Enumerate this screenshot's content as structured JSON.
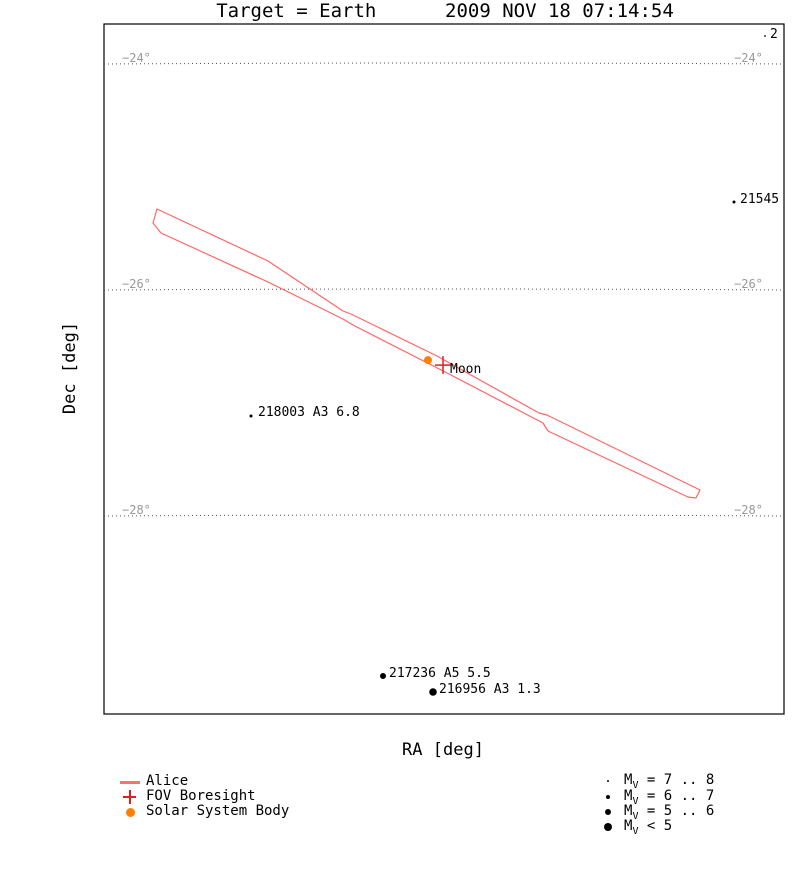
{
  "title": {
    "target": "Target = Earth",
    "datetime": "2009 NOV 18 07:14:54"
  },
  "chart_data": {
    "type": "scatter",
    "xlabel": "RA [deg]",
    "ylabel": "Dec [deg]",
    "ylim": [
      -29.3,
      -23.6
    ],
    "grid": "dotted declination lines",
    "dec_lines": [
      {
        "dec": -24,
        "label": "−24°"
      },
      {
        "dec": -26,
        "label": "−26°"
      },
      {
        "dec": -28,
        "label": "−28°"
      }
    ],
    "stars": [
      {
        "label": "218003 A3 6.8",
        "dec": -27.05,
        "mag_class": "Mv = 6 .. 7"
      },
      {
        "label": "21545",
        "dec": -25.5,
        "mag_class": "Mv = 6 .. 7"
      },
      {
        "label": "2",
        "dec": -23.7,
        "mag_class": "Mv = 7 .. 8"
      },
      {
        "label": "217236 A5 5.5",
        "dec": -28.65,
        "mag_class": "Mv = 5 .. 6"
      },
      {
        "label": "216956 A3 1.3",
        "dec": -28.75,
        "mag_class": "Mv < 5"
      }
    ],
    "solar_system_bodies": [
      {
        "label": "Moon",
        "dec": -26.7
      }
    ],
    "fov_boresight": {
      "label": "FOV Boresight",
      "dec": -26.7
    },
    "instrument_fov": {
      "label": "Alice",
      "color": "#ff6666"
    }
  },
  "legend": {
    "items": [
      {
        "label": "Alice",
        "symbol": "line",
        "color": "#ff7070"
      },
      {
        "label": "FOV Boresight",
        "symbol": "cross",
        "color": "#e02020"
      },
      {
        "label": "Solar System Body",
        "symbol": "dot",
        "color": "#ff7f00"
      }
    ],
    "magnitudes": [
      {
        "label": "= 7 .. 8",
        "size": 2
      },
      {
        "label": "= 6 .. 7",
        "size": 4
      },
      {
        "label": "= 5 .. 6",
        "size": 6
      },
      {
        "label": "< 5",
        "size": 8
      }
    ],
    "mag_prefix": "M",
    "mag_sub": "V"
  },
  "colors": {
    "fov": "#ff6666",
    "boresight": "#e02020",
    "body": "#ff7f00",
    "grid": "#999999"
  }
}
